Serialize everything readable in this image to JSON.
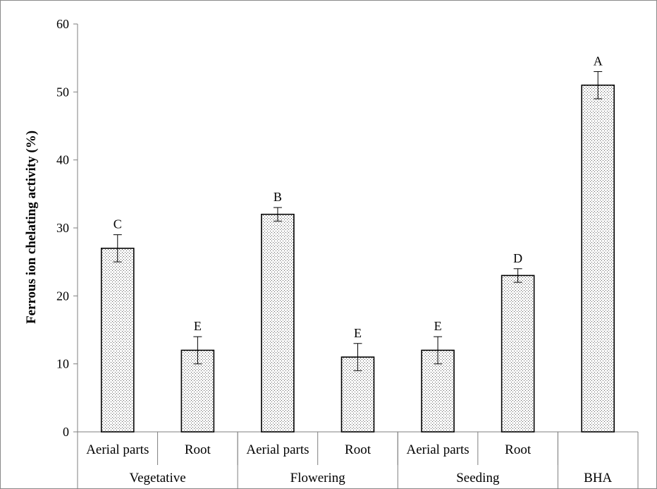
{
  "chart_data": {
    "type": "bar",
    "title": "",
    "xlabel": "",
    "ylabel": "Ferrous ion chelating activity (%)",
    "ylim": [
      0,
      60
    ],
    "yticks": [
      0,
      10,
      20,
      30,
      40,
      50,
      60
    ],
    "grid": false,
    "legend": "none",
    "bar_fill": "dotted",
    "bar_color": "#ffffff",
    "dot_color": "#555555",
    "categories": [
      "Aerial parts",
      "Root",
      "Aerial parts",
      "Root",
      "Aerial parts",
      "Root",
      ""
    ],
    "groups": [
      {
        "label": "Vegetative",
        "categories": 2
      },
      {
        "label": "Flowering",
        "categories": 2
      },
      {
        "label": "Seeding",
        "categories": 2
      },
      {
        "label": "BHA",
        "categories": 1
      }
    ],
    "values": [
      27,
      12,
      32,
      11,
      12,
      23,
      51
    ],
    "errors": [
      2,
      2,
      1,
      2,
      2,
      1,
      2
    ],
    "significance": [
      "C",
      "E",
      "B",
      "E",
      "E",
      "D",
      "A"
    ]
  }
}
